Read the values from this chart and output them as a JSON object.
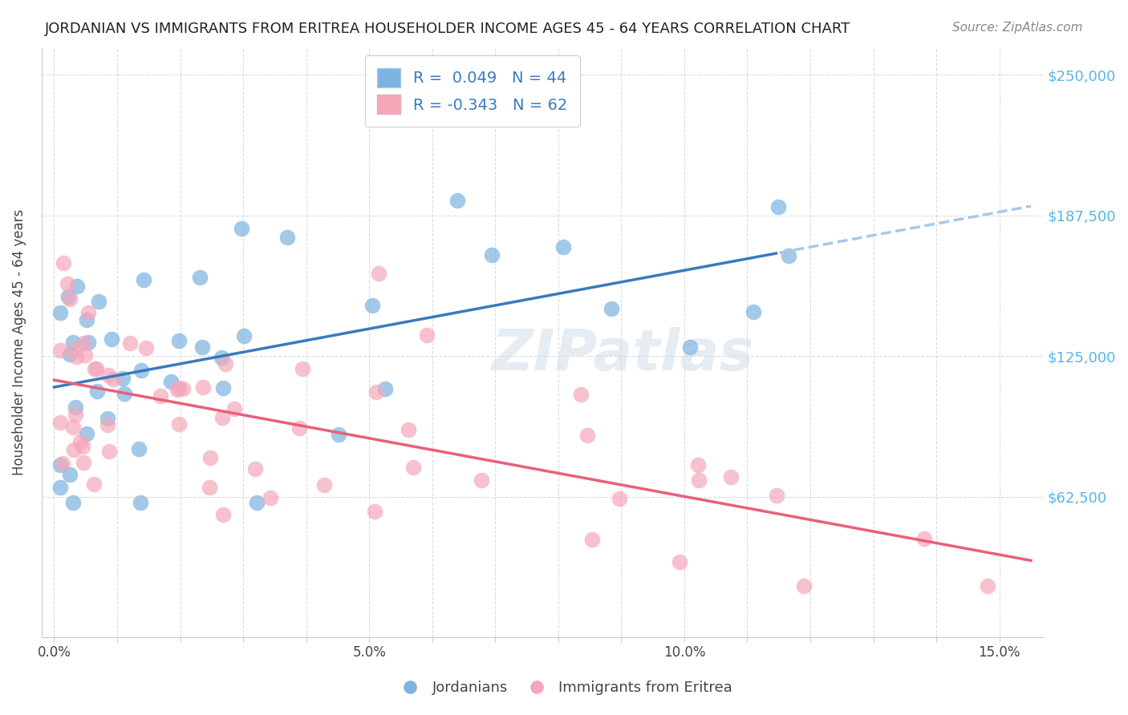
{
  "title": "JORDANIAN VS IMMIGRANTS FROM ERITREA HOUSEHOLDER INCOME AGES 45 - 64 YEARS CORRELATION CHART",
  "source": "Source: ZipAtlas.com",
  "ylabel": "Householder Income Ages 45 - 64 years",
  "ytick_labels": [
    "$250,000",
    "$187,500",
    "$125,000",
    "$62,500"
  ],
  "ytick_values": [
    250000,
    187500,
    125000,
    62500
  ],
  "background_color": "#ffffff",
  "watermark": "ZIPatlas",
  "legend_R1": "0.049",
  "legend_N1": "44",
  "legend_R2": "-0.343",
  "legend_N2": "62",
  "blue_color": "#7db3e0",
  "pink_color": "#f4a7b9",
  "blue_line_color": "#3a7abf",
  "pink_line_color": "#e8607a",
  "blue_dashed_color": "#a8c8e8"
}
